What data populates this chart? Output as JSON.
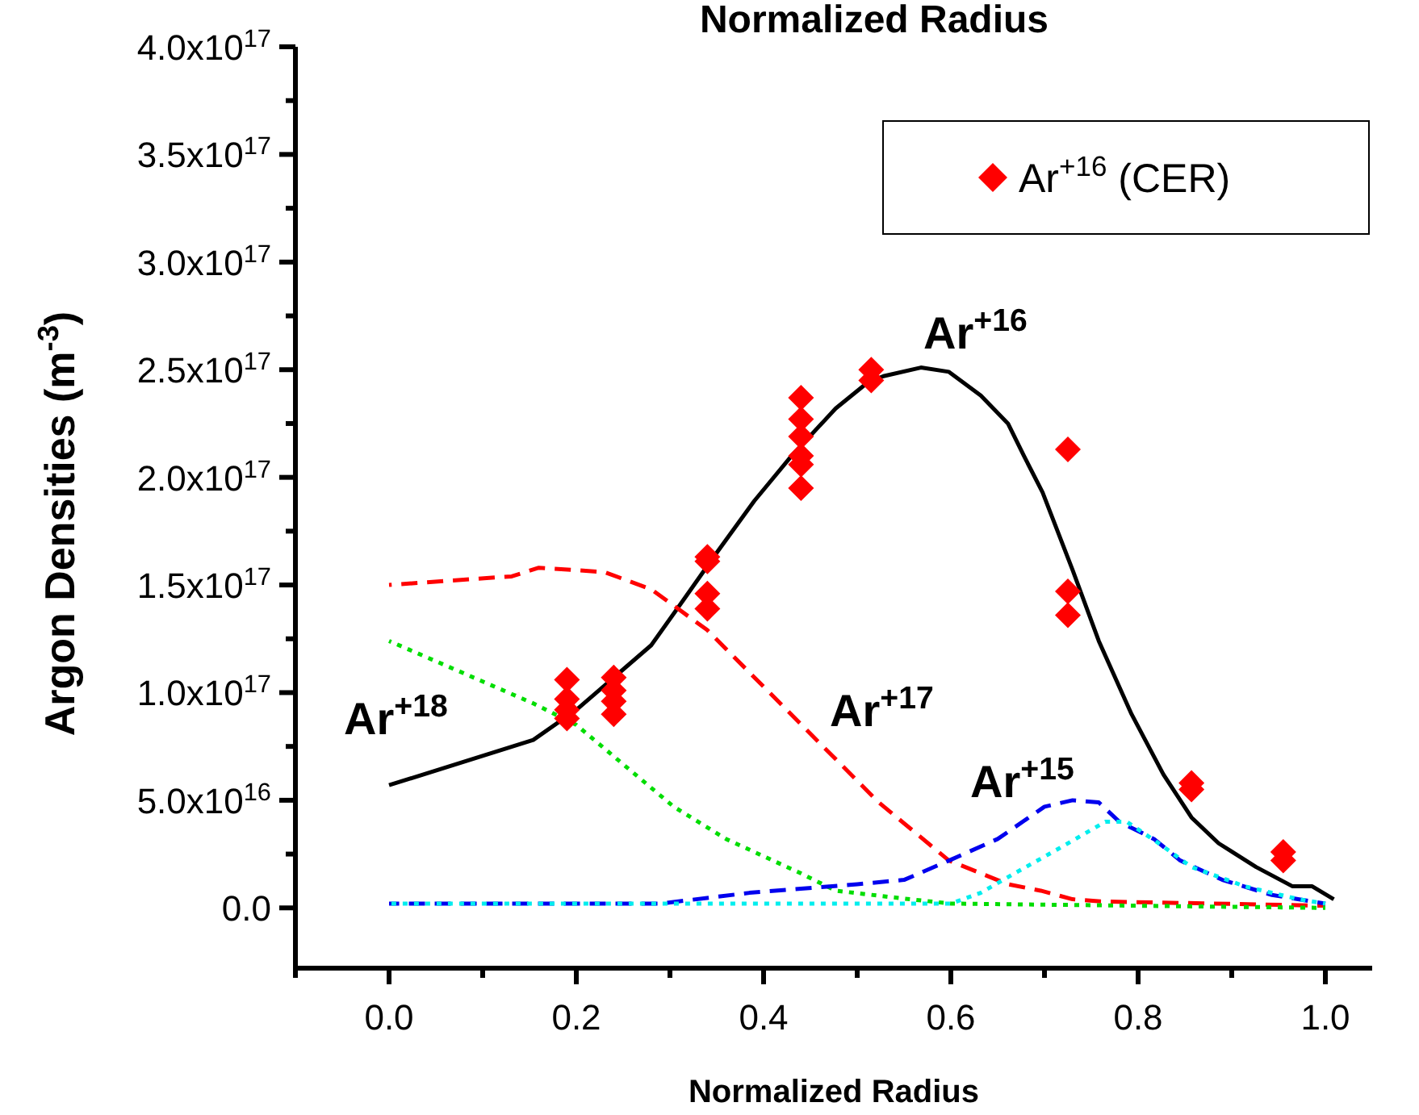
{
  "chart_data": {
    "type": "line",
    "title": "Normalized Radius",
    "xlabel": "Normalized Radius",
    "ylabel": "Argon Densities (m$^{-3}$)",
    "xlim": [
      -0.1,
      1.05
    ],
    "xticks": [
      {
        "value": -0.1,
        "label": null
      },
      {
        "value": 0,
        "label": "0.0"
      },
      {
        "value": 0.1,
        "label": null
      },
      {
        "value": 0.2,
        "label": "0.2"
      },
      {
        "value": 0.3,
        "label": null
      },
      {
        "value": 0.4,
        "label": "0.4"
      },
      {
        "value": 0.5,
        "label": null
      },
      {
        "value": 0.6,
        "label": "0.6"
      },
      {
        "value": 0.7,
        "label": null
      },
      {
        "value": 0.8,
        "label": "0.8"
      },
      {
        "value": 0.9,
        "label": null
      },
      {
        "value": 1.0,
        "label": "1.0"
      }
    ],
    "ylim": [
      -2.8e+16,
      4e+17
    ],
    "yticks": [
      {
        "value": 0,
        "label": "0.0"
      },
      {
        "value": 2.5e+16,
        "label": null
      },
      {
        "value": 5e+16,
        "label": "5.0x10$^{16}$"
      },
      {
        "value": 7.5e+16,
        "label": null
      },
      {
        "value": 1e+17,
        "label": "1.0x10$^{17}$"
      },
      {
        "value": 1.25e+17,
        "label": null
      },
      {
        "value": 1.5e+17,
        "label": "1.5x10$^{17}$"
      },
      {
        "value": 1.75e+17,
        "label": null
      },
      {
        "value": 2e+17,
        "label": "2.0x10$^{17}$"
      },
      {
        "value": 2.25e+17,
        "label": null
      },
      {
        "value": 2.5e+17,
        "label": "2.5x10$^{17}$"
      },
      {
        "value": 2.75e+17,
        "label": null
      },
      {
        "value": 3e+17,
        "label": "3.0x10$^{17}$"
      },
      {
        "value": 3.25e+17,
        "label": null
      },
      {
        "value": 3.5e+17,
        "label": "3.5x10$^{17}$"
      },
      {
        "value": 3.75e+17,
        "label": null
      },
      {
        "value": 4e+17,
        "label": "4.0x10$^{17}$"
      }
    ],
    "legend": "top right",
    "grid": false,
    "series": [
      {
        "color": "#000000",
        "line_style": "solid",
        "marker": "none",
        "x": [
          0,
          0.154,
          0.2,
          0.24,
          0.28,
          0.316,
          0.35,
          0.39,
          0.43,
          0.477,
          0.511,
          0.528,
          0.568,
          0.598,
          0.632,
          0.661,
          0.678,
          0.698,
          0.73,
          0.758,
          0.793,
          0.827,
          0.857,
          0.886,
          0.926,
          0.965,
          0.986,
          1.009
        ],
        "values": [
          5.7e+16,
          7.8e+16,
          9.2e+16,
          1.07e+17,
          1.22e+17,
          1.44e+17,
          1.65e+17,
          1.89e+17,
          2.1e+17,
          2.32e+17,
          2.44e+17,
          2.47e+17,
          2.51e+17,
          2.49e+17,
          2.38e+17,
          2.25e+17,
          2.1e+17,
          1.93e+17,
          1.57e+17,
          1.24e+17,
          9e+16,
          6.2e+16,
          4.2e+16,
          3e+16,
          1.9e+16,
          1e+16,
          1e+16,
          4000000000000000.0
        ]
      },
      {
        "color": "#ff0000",
        "line_style": "dashed",
        "marker": "none",
        "x": [
          0,
          0.131,
          0.16,
          0.23,
          0.28,
          0.34,
          0.523,
          0.598,
          0.661,
          0.696,
          0.73,
          0.76,
          1.0
        ],
        "values": [
          1.5e+17,
          1.54e+17,
          1.58e+17,
          1.56e+17,
          1.48e+17,
          1.29e+17,
          4.9e+16,
          2.2e+16,
          1.1e+16,
          8000000000000000.0,
          4000000000000000.0,
          3000000000000000.0,
          1000000000000000.0
        ]
      },
      {
        "color": "#00dd00",
        "line_style": "dotted",
        "marker": "none",
        "x": [
          0,
          0.154,
          0.2,
          0.304,
          0.36,
          0.44,
          0.477,
          0.546,
          0.6,
          1.0
        ],
        "values": [
          1.24e+17,
          9.5e+16,
          8.5e+16,
          4.7e+16,
          3.2e+16,
          1.6e+16,
          8000000000000000.0,
          4500000000000000.0,
          2000000000000000.0,
          0
        ]
      },
      {
        "color": "#0000ee",
        "line_style": "dashed",
        "marker": "none",
        "x": [
          0,
          0.29,
          0.385,
          0.5,
          0.55,
          0.598,
          0.65,
          0.7,
          0.73,
          0.758,
          0.78,
          0.817,
          0.845,
          0.89,
          0.943,
          1.0
        ],
        "values": [
          2000000000000000.0,
          2000000000000000.0,
          7000000000000000.0,
          1.1e+16,
          1.3e+16,
          2.2e+16,
          3.2e+16,
          4.7e+16,
          5e+16,
          4.9e+16,
          4e+16,
          3.2e+16,
          2.2e+16,
          1.3e+16,
          6000000000000000.0,
          2000000000000000.0
        ]
      },
      {
        "color": "#00eeee",
        "line_style": "dotted",
        "marker": "none",
        "x": [
          0,
          0.6,
          0.632,
          0.672,
          0.713,
          0.765,
          0.788,
          0.822,
          0.857,
          0.914,
          0.972,
          1.0
        ],
        "values": [
          2000000000000000.0,
          2000000000000000.0,
          7000000000000000.0,
          1.7e+16,
          2.7e+16,
          4e+16,
          4e+16,
          3e+16,
          1.9e+16,
          1e+16,
          4000000000000000.0,
          2000000000000000.0
        ]
      },
      {
        "type": "scatter",
        "name": "Ar$^{+16}$ (CER)",
        "color": "#ff0000",
        "marker": "diamond",
        "x": [
          0.19,
          0.19,
          0.19,
          0.19,
          0.24,
          0.24,
          0.24,
          0.24,
          0.34,
          0.34,
          0.34,
          0.34,
          0.44,
          0.44,
          0.44,
          0.44,
          0.44,
          0.44,
          0.515,
          0.515,
          0.725,
          0.725,
          0.725,
          0.857,
          0.857,
          0.955,
          0.955
        ],
        "values": [
          1.06e+17,
          9.7e+16,
          9.2e+16,
          8.8e+16,
          1.07e+17,
          1.01e+17,
          9.6e+16,
          9e+16,
          1.63e+17,
          1.61e+17,
          1.46e+17,
          1.39e+17,
          2.37e+17,
          2.27e+17,
          2.19e+17,
          2.1e+17,
          2.06e+17,
          1.95e+17,
          2.5e+17,
          2.45e+17,
          2.13e+17,
          1.47e+17,
          1.36e+17,
          5.8e+16,
          5.5e+16,
          2.6e+16,
          2.2e+16
        ]
      }
    ],
    "annotations": [
      "Ar$^{+18}$",
      "Ar$^{+17}$",
      "Ar$^{+16}$",
      "Ar$^{+15}$"
    ]
  }
}
